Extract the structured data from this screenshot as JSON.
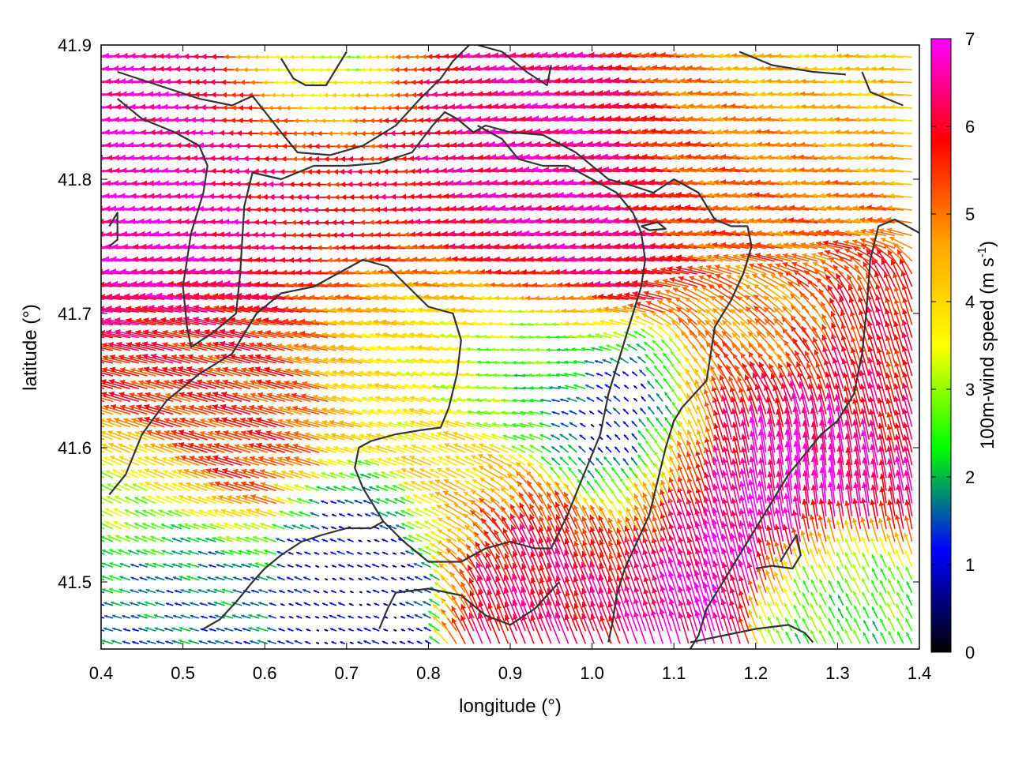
{
  "chart_data": {
    "type": "vector-field",
    "title": "",
    "xlabel": "longitude (°)",
    "ylabel": "latitude (°)",
    "colorbar_label_main": "100m-wind speed (m s",
    "colorbar_label_sup": "-1",
    "colorbar_label_end": ")",
    "xlim": [
      0.4,
      1.4
    ],
    "ylim": [
      41.45,
      41.9
    ],
    "xticks": [
      0.4,
      0.5,
      0.6,
      0.7,
      0.8,
      0.9,
      1.0,
      1.1,
      1.2,
      1.3,
      1.4
    ],
    "xtick_labels": [
      "0.4",
      "0.5",
      "0.6",
      "0.7",
      "0.8",
      "0.9",
      "1.0",
      "1.1",
      "1.2",
      "1.3",
      "1.4"
    ],
    "yticks": [
      41.5,
      41.6,
      41.7,
      41.8,
      41.9
    ],
    "ytick_labels": [
      "41.5",
      "41.6",
      "41.7",
      "41.8",
      "41.9"
    ],
    "color_range": [
      0,
      7
    ],
    "colorbar_ticks": [
      0,
      1,
      2,
      3,
      4,
      5,
      6,
      7
    ],
    "colorbar_tick_labels": [
      "0",
      "1",
      "2",
      "3",
      "4",
      "5",
      "6",
      "7"
    ],
    "colormap": [
      "#000000",
      "#0000ff",
      "#00ff00",
      "#ffff00",
      "#ffa500",
      "#ff0000",
      "#ff00ff"
    ],
    "grid": false,
    "legend": "none",
    "boundary_lines": [
      [
        [
          0.42,
          41.88
        ],
        [
          0.47,
          41.87
        ],
        [
          0.52,
          41.86
        ],
        [
          0.56,
          41.855
        ],
        [
          0.585,
          41.862
        ],
        [
          0.62,
          41.835
        ],
        [
          0.64,
          41.82
        ],
        [
          0.68,
          41.818
        ],
        [
          0.72,
          41.825
        ],
        [
          0.76,
          41.84
        ],
        [
          0.79,
          41.86
        ],
        [
          0.815,
          41.875
        ],
        [
          0.83,
          41.888
        ],
        [
          0.85,
          41.9
        ]
      ],
      [
        [
          0.42,
          41.86
        ],
        [
          0.45,
          41.845
        ],
        [
          0.49,
          41.835
        ],
        [
          0.52,
          41.825
        ],
        [
          0.53,
          41.81
        ],
        [
          0.525,
          41.79
        ],
        [
          0.51,
          41.76
        ],
        [
          0.5,
          41.72
        ],
        [
          0.505,
          41.69
        ],
        [
          0.51,
          41.675
        ],
        [
          0.535,
          41.685
        ],
        [
          0.555,
          41.695
        ],
        [
          0.565,
          41.7
        ],
        [
          0.57,
          41.73
        ],
        [
          0.575,
          41.78
        ],
        [
          0.585,
          41.805
        ],
        [
          0.62,
          41.8
        ],
        [
          0.66,
          41.81
        ],
        [
          0.7,
          41.81
        ],
        [
          0.74,
          41.812
        ],
        [
          0.78,
          41.82
        ],
        [
          0.805,
          41.84
        ],
        [
          0.82,
          41.85
        ],
        [
          0.835,
          41.845
        ],
        [
          0.855,
          41.835
        ],
        [
          0.87,
          41.84
        ],
        [
          0.9,
          41.835
        ],
        [
          0.94,
          41.833
        ],
        [
          0.98,
          41.82
        ],
        [
          1.02,
          41.8
        ],
        [
          1.05,
          41.795
        ],
        [
          1.075,
          41.79
        ],
        [
          1.1,
          41.8
        ],
        [
          1.13,
          41.79
        ],
        [
          1.15,
          41.77
        ],
        [
          1.17,
          41.765
        ],
        [
          1.19,
          41.765
        ],
        [
          1.195,
          41.75
        ],
        [
          1.185,
          41.73
        ],
        [
          1.17,
          41.71
        ],
        [
          1.15,
          41.69
        ],
        [
          1.145,
          41.67
        ],
        [
          1.14,
          41.65
        ],
        [
          1.125,
          41.64
        ],
        [
          1.11,
          41.63
        ],
        [
          1.1,
          41.62
        ],
        [
          1.09,
          41.6
        ],
        [
          1.08,
          41.575
        ],
        [
          1.07,
          41.55
        ],
        [
          1.055,
          41.53
        ],
        [
          1.04,
          41.51
        ],
        [
          1.03,
          41.49
        ],
        [
          1.025,
          41.47
        ],
        [
          1.02,
          41.455
        ]
      ],
      [
        [
          0.41,
          41.565
        ],
        [
          0.43,
          41.58
        ],
        [
          0.45,
          41.61
        ],
        [
          0.48,
          41.635
        ],
        [
          0.52,
          41.655
        ],
        [
          0.56,
          41.67
        ],
        [
          0.59,
          41.7
        ],
        [
          0.62,
          41.715
        ],
        [
          0.66,
          41.72
        ],
        [
          0.69,
          41.73
        ],
        [
          0.72,
          41.74
        ],
        [
          0.75,
          41.735
        ],
        [
          0.775,
          41.72
        ],
        [
          0.8,
          41.705
        ],
        [
          0.83,
          41.7
        ],
        [
          0.84,
          41.68
        ],
        [
          0.835,
          41.655
        ],
        [
          0.825,
          41.63
        ],
        [
          0.815,
          41.615
        ],
        [
          0.79,
          41.613
        ],
        [
          0.76,
          41.61
        ],
        [
          0.73,
          41.605
        ],
        [
          0.715,
          41.6
        ],
        [
          0.71,
          41.585
        ],
        [
          0.72,
          41.57
        ],
        [
          0.735,
          41.555
        ],
        [
          0.745,
          41.545
        ],
        [
          0.73,
          41.54
        ],
        [
          0.7,
          41.54
        ],
        [
          0.67,
          41.535
        ],
        [
          0.645,
          41.53
        ],
        [
          0.62,
          41.52
        ],
        [
          0.6,
          41.51
        ],
        [
          0.585,
          41.5
        ],
        [
          0.565,
          41.485
        ],
        [
          0.545,
          41.472
        ],
        [
          0.525,
          41.465
        ]
      ],
      [
        [
          0.745,
          41.545
        ],
        [
          0.77,
          41.53
        ],
        [
          0.8,
          41.515
        ],
        [
          0.84,
          41.515
        ],
        [
          0.87,
          41.525
        ],
        [
          0.9,
          41.53
        ],
        [
          0.93,
          41.525
        ],
        [
          0.95,
          41.525
        ],
        [
          0.97,
          41.55
        ],
        [
          0.99,
          41.58
        ],
        [
          1.01,
          41.61
        ],
        [
          1.02,
          41.64
        ],
        [
          1.03,
          41.66
        ],
        [
          1.04,
          41.68
        ],
        [
          1.05,
          41.7
        ],
        [
          1.06,
          41.72
        ],
        [
          1.065,
          41.74
        ],
        [
          1.06,
          41.76
        ],
        [
          1.05,
          41.775
        ],
        [
          1.03,
          41.79
        ],
        [
          1.0,
          41.8
        ],
        [
          0.97,
          41.81
        ],
        [
          0.94,
          41.81
        ],
        [
          0.91,
          41.815
        ],
        [
          0.89,
          41.83
        ],
        [
          0.86,
          41.84
        ]
      ],
      [
        [
          1.33,
          41.88
        ],
        [
          1.34,
          41.865
        ],
        [
          1.36,
          41.86
        ],
        [
          1.38,
          41.855
        ]
      ],
      [
        [
          1.18,
          41.895
        ],
        [
          1.22,
          41.885
        ],
        [
          1.27,
          41.88
        ],
        [
          1.31,
          41.878
        ]
      ],
      [
        [
          1.4,
          41.76
        ],
        [
          1.37,
          41.77
        ],
        [
          1.35,
          41.765
        ],
        [
          1.34,
          41.74
        ],
        [
          1.335,
          41.7
        ],
        [
          1.33,
          41.67
        ],
        [
          1.32,
          41.64
        ],
        [
          1.3,
          41.62
        ],
        [
          1.28,
          41.61
        ],
        [
          1.26,
          41.595
        ],
        [
          1.24,
          41.58
        ],
        [
          1.22,
          41.56
        ],
        [
          1.2,
          41.54
        ],
        [
          1.18,
          41.52
        ],
        [
          1.16,
          41.5
        ],
        [
          1.14,
          41.48
        ],
        [
          1.13,
          41.46
        ],
        [
          1.12,
          41.45
        ]
      ],
      [
        [
          1.12,
          41.455
        ],
        [
          1.16,
          41.46
        ],
        [
          1.2,
          41.465
        ],
        [
          1.24,
          41.468
        ],
        [
          1.26,
          41.462
        ],
        [
          1.27,
          41.455
        ]
      ],
      [
        [
          1.2,
          41.51
        ],
        [
          1.22,
          41.512
        ],
        [
          1.245,
          41.51
        ],
        [
          1.255,
          41.52
        ],
        [
          1.25,
          41.535
        ],
        [
          1.24,
          41.525
        ],
        [
          1.23,
          41.515
        ]
      ],
      [
        [
          0.74,
          41.465
        ],
        [
          0.75,
          41.48
        ],
        [
          0.76,
          41.492
        ],
        [
          0.8,
          41.495
        ],
        [
          0.84,
          41.49
        ],
        [
          0.87,
          41.475
        ],
        [
          0.9,
          41.468
        ],
        [
          0.93,
          41.48
        ],
        [
          0.96,
          41.5
        ]
      ],
      [
        [
          0.41,
          41.765
        ],
        [
          0.42,
          41.775
        ],
        [
          0.42,
          41.755
        ],
        [
          0.41,
          41.75
        ]
      ],
      [
        [
          1.06,
          41.765
        ],
        [
          1.08,
          41.768
        ],
        [
          1.09,
          41.763
        ],
        [
          1.07,
          41.762
        ],
        [
          1.06,
          41.765
        ]
      ],
      [
        [
          0.62,
          41.89
        ],
        [
          0.635,
          41.875
        ],
        [
          0.65,
          41.87
        ],
        [
          0.675,
          41.87
        ],
        [
          0.69,
          41.885
        ],
        [
          0.7,
          41.895
        ]
      ],
      [
        [
          0.86,
          41.9
        ],
        [
          0.89,
          41.895
        ],
        [
          0.92,
          41.88
        ],
        [
          0.945,
          41.87
        ],
        [
          0.95,
          41.885
        ]
      ]
    ],
    "wind_regions": [
      {
        "lon": 0.5,
        "lat": 41.77,
        "u": -1.0,
        "v": 0.05,
        "speed": 6.8,
        "radius": 0.14
      },
      {
        "lon": 0.72,
        "lat": 41.8,
        "u": -1.0,
        "v": 0.0,
        "speed": 5.9,
        "radius": 0.16
      },
      {
        "lon": 0.95,
        "lat": 41.79,
        "u": -1.0,
        "v": 0.08,
        "speed": 6.6,
        "radius": 0.14
      },
      {
        "lon": 1.22,
        "lat": 41.82,
        "u": -1.0,
        "v": 0.12,
        "speed": 5.2,
        "radius": 0.14
      },
      {
        "lon": 1.28,
        "lat": 41.87,
        "u": -1.0,
        "v": 0.05,
        "speed": 4.0,
        "radius": 0.12
      },
      {
        "lon": 0.7,
        "lat": 41.88,
        "u": -1.0,
        "v": 0.0,
        "speed": 2.3,
        "radius": 0.08
      },
      {
        "lon": 0.55,
        "lat": 41.64,
        "u": -1.0,
        "v": 0.3,
        "speed": 5.5,
        "radius": 0.13
      },
      {
        "lon": 0.8,
        "lat": 41.67,
        "u": -1.0,
        "v": 0.2,
        "speed": 3.6,
        "radius": 0.12
      },
      {
        "lon": 0.93,
        "lat": 41.66,
        "u": -1.0,
        "v": 0.0,
        "speed": 2.2,
        "radius": 0.09
      },
      {
        "lon": 1.05,
        "lat": 41.6,
        "u": -0.3,
        "v": 0.3,
        "speed": 0.4,
        "radius": 0.1
      },
      {
        "lon": 1.23,
        "lat": 41.6,
        "u": -0.1,
        "v": 1.0,
        "speed": 6.8,
        "radius": 0.12
      },
      {
        "lon": 1.36,
        "lat": 41.65,
        "u": -0.3,
        "v": 1.0,
        "speed": 5.8,
        "radius": 0.1
      },
      {
        "lon": 1.13,
        "lat": 41.55,
        "u": -0.3,
        "v": 1.0,
        "speed": 6.9,
        "radius": 0.1
      },
      {
        "lon": 0.95,
        "lat": 41.52,
        "u": -0.4,
        "v": 1.0,
        "speed": 6.2,
        "radius": 0.09
      },
      {
        "lon": 0.72,
        "lat": 41.52,
        "u": -1.0,
        "v": 0.4,
        "speed": 0.8,
        "radius": 0.08
      },
      {
        "lon": 0.5,
        "lat": 41.5,
        "u": -1.0,
        "v": 0.3,
        "speed": 1.6,
        "radius": 0.08
      },
      {
        "lon": 0.45,
        "lat": 41.56,
        "u": -1.0,
        "v": 0.5,
        "speed": 3.0,
        "radius": 0.07
      },
      {
        "lon": 0.85,
        "lat": 41.57,
        "u": -1.0,
        "v": 0.5,
        "speed": 4.2,
        "radius": 0.08
      },
      {
        "lon": 1.3,
        "lat": 41.48,
        "u": -0.5,
        "v": 1.0,
        "speed": 2.5,
        "radius": 0.07
      },
      {
        "lon": 1.22,
        "lat": 41.67,
        "u": -0.8,
        "v": 0.6,
        "speed": 4.5,
        "radius": 0.08
      }
    ]
  }
}
